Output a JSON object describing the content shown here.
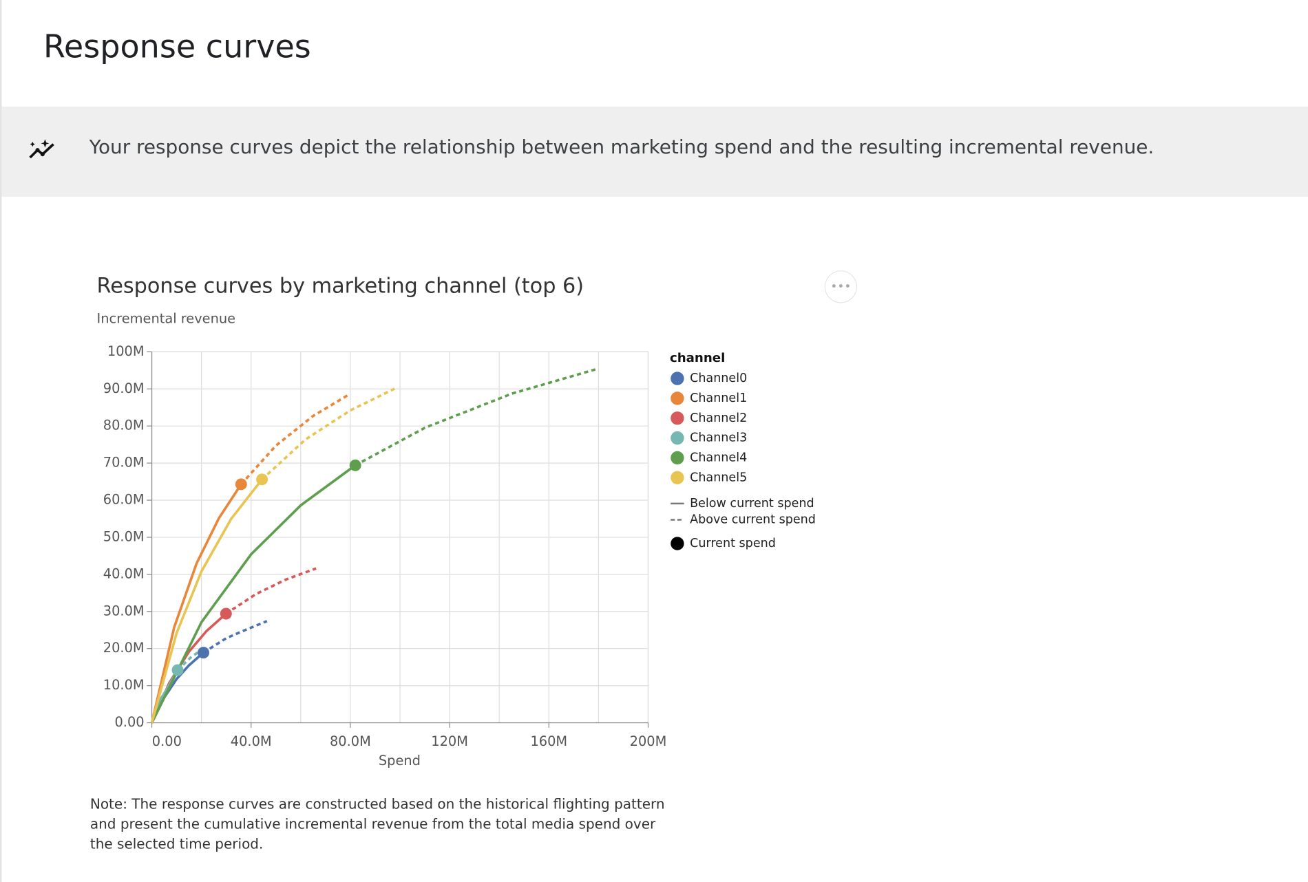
{
  "page": {
    "title": "Response curves",
    "banner": "Your response curves depict the relationship between marketing spend and the resulting incremental revenue.",
    "note": "Note: The response curves are constructed based on the historical flighting pattern and present the cumulative incremental revenue from the total media spend over the selected time period."
  },
  "chart_data": {
    "type": "line",
    "title": "Response curves by marketing channel (top 6)",
    "y_label": "Incremental revenue",
    "x_label": "Spend",
    "legend_title": "channel",
    "style_labels": [
      "Below current spend",
      "Above current spend"
    ],
    "current_label": "Current spend",
    "xlim": [
      0,
      200
    ],
    "ylim": [
      0,
      100
    ],
    "grid": true,
    "legend": "right",
    "xticks": [
      {
        "value": 0,
        "label": "0.00"
      },
      {
        "value": 40,
        "label": "40.0M"
      },
      {
        "value": 80,
        "label": "80.0M"
      },
      {
        "value": 120,
        "label": "120M"
      },
      {
        "value": 160,
        "label": "160M"
      },
      {
        "value": 200,
        "label": "200M"
      }
    ],
    "yticks": [
      {
        "value": 0,
        "label": "0.00"
      },
      {
        "value": 10,
        "label": "10.0M"
      },
      {
        "value": 20,
        "label": "20.0M"
      },
      {
        "value": 30,
        "label": "30.0M"
      },
      {
        "value": 40,
        "label": "40.0M"
      },
      {
        "value": 50,
        "label": "50.0M"
      },
      {
        "value": 60,
        "label": "60.0M"
      },
      {
        "value": 70,
        "label": "70.0M"
      },
      {
        "value": 80,
        "label": "80.0M"
      },
      {
        "value": 90,
        "label": "90.0M"
      },
      {
        "value": 100,
        "label": "100M"
      }
    ],
    "series": [
      {
        "name": "Channel0",
        "color": "#4c72b0",
        "current_index": 4,
        "x": [
          0,
          5,
          10,
          15,
          20.8,
          30,
          38,
          46.4
        ],
        "values": [
          0,
          6.8,
          11.8,
          15.5,
          18.9,
          22.8,
          25.1,
          27.4
        ]
      },
      {
        "name": "Channel1",
        "color": "#e8873a",
        "current_index": 4,
        "x": [
          0,
          9,
          18,
          27,
          36,
          50,
          65,
          79
        ],
        "values": [
          0,
          25.7,
          42.9,
          55.1,
          64.3,
          74.7,
          82.7,
          88.3
        ]
      },
      {
        "name": "Channel2",
        "color": "#d65a5a",
        "current_index": 4,
        "x": [
          0,
          7,
          15,
          22,
          29.9,
          42,
          54,
          66.2
        ],
        "values": [
          0,
          10.7,
          19.2,
          24.7,
          29.4,
          34.7,
          38.6,
          41.6
        ]
      },
      {
        "name": "Channel3",
        "color": "#76b7b2",
        "current_index": 3,
        "x": [
          0,
          3,
          6,
          10.4,
          16,
          22
        ],
        "values": [
          0,
          5.8,
          9.0,
          14.2,
          17.8,
          20.5
        ]
      },
      {
        "name": "Channel4",
        "color": "#5f9e4f",
        "current_index": 4,
        "x": [
          0,
          20,
          40,
          60,
          82,
          110,
          145,
          180
        ],
        "values": [
          0,
          27.1,
          45.4,
          58.6,
          69.4,
          79.5,
          88.7,
          95.5
        ]
      },
      {
        "name": "Channel5",
        "color": "#e8c552",
        "current_index": 4,
        "x": [
          0,
          10,
          20,
          32,
          44.4,
          62,
          80,
          98
        ],
        "values": [
          0,
          24.2,
          40.8,
          55.0,
          65.6,
          76.4,
          84.2,
          90.1
        ]
      }
    ]
  }
}
